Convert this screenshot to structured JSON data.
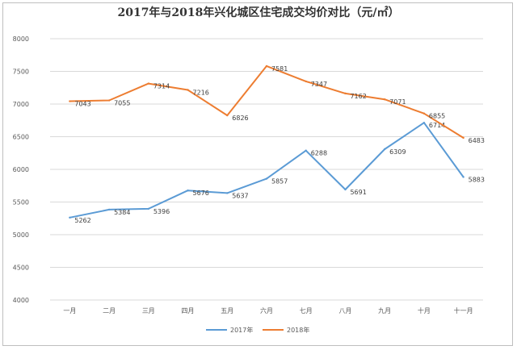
{
  "chart_data": {
    "type": "line",
    "title": "2017年与2018年兴化城区住宅成交均价对比（元/㎡）",
    "xlabel": "",
    "ylabel": "",
    "categories": [
      "一月",
      "二月",
      "三月",
      "四月",
      "五月",
      "六月",
      "七月",
      "八月",
      "九月",
      "十月",
      "十一月"
    ],
    "ylim": [
      4000,
      8000
    ],
    "yticks": [
      4000,
      4500,
      5000,
      5500,
      6000,
      6500,
      7000,
      7500,
      8000
    ],
    "grid": true,
    "legend_position": "bottom",
    "series": [
      {
        "name": "2017年",
        "color": "#5b9bd5",
        "values": [
          5262,
          5384,
          5396,
          5676,
          5637,
          5857,
          6288,
          5691,
          6309,
          6714,
          5883
        ]
      },
      {
        "name": "2018年",
        "color": "#ed7d31",
        "values": [
          7043,
          7055,
          7314,
          7216,
          6826,
          7581,
          7347,
          7162,
          7071,
          6855,
          6483
        ]
      }
    ]
  }
}
